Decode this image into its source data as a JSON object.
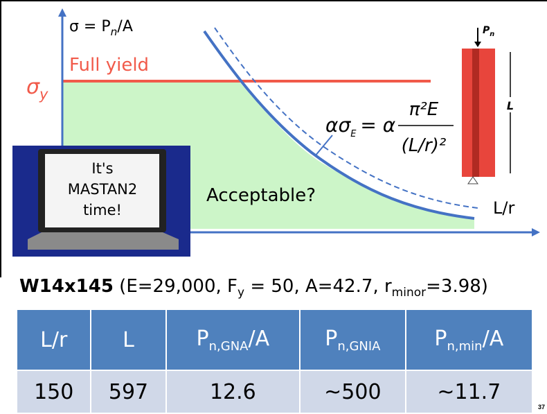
{
  "diagram": {
    "y_axis_label": [
      "σ = P",
      "n",
      "/A"
    ],
    "full_yield": "Full yield",
    "sigma_y": [
      "σ",
      "y"
    ],
    "x_axis_label": "L/r",
    "region_label": "Acceptable?",
    "formula": {
      "lhs": "ασ",
      "lhs_sub": "E",
      "equals": "= α",
      "numerator": "π²E",
      "denominator": "(L/r)²"
    },
    "laptop_text": [
      "It's",
      "MASTAN2",
      "time!"
    ],
    "column": {
      "load": [
        "P",
        "n"
      ],
      "length": "L"
    }
  },
  "section": {
    "name": "W14x145",
    "props": [
      "(E=29,000, F",
      "y",
      " = 50, A=42.7, r",
      "minor",
      "=3.98)"
    ]
  },
  "table": {
    "headers": [
      [
        "L/r"
      ],
      [
        "L"
      ],
      [
        "P",
        "n,GNA",
        "/A"
      ],
      [
        "P",
        "n,GNIA"
      ],
      [
        "P",
        "n,min",
        "/A"
      ]
    ],
    "rows": [
      [
        "150",
        "597",
        "12.6",
        "~500",
        "~11.7"
      ]
    ]
  },
  "page_number": "37"
}
